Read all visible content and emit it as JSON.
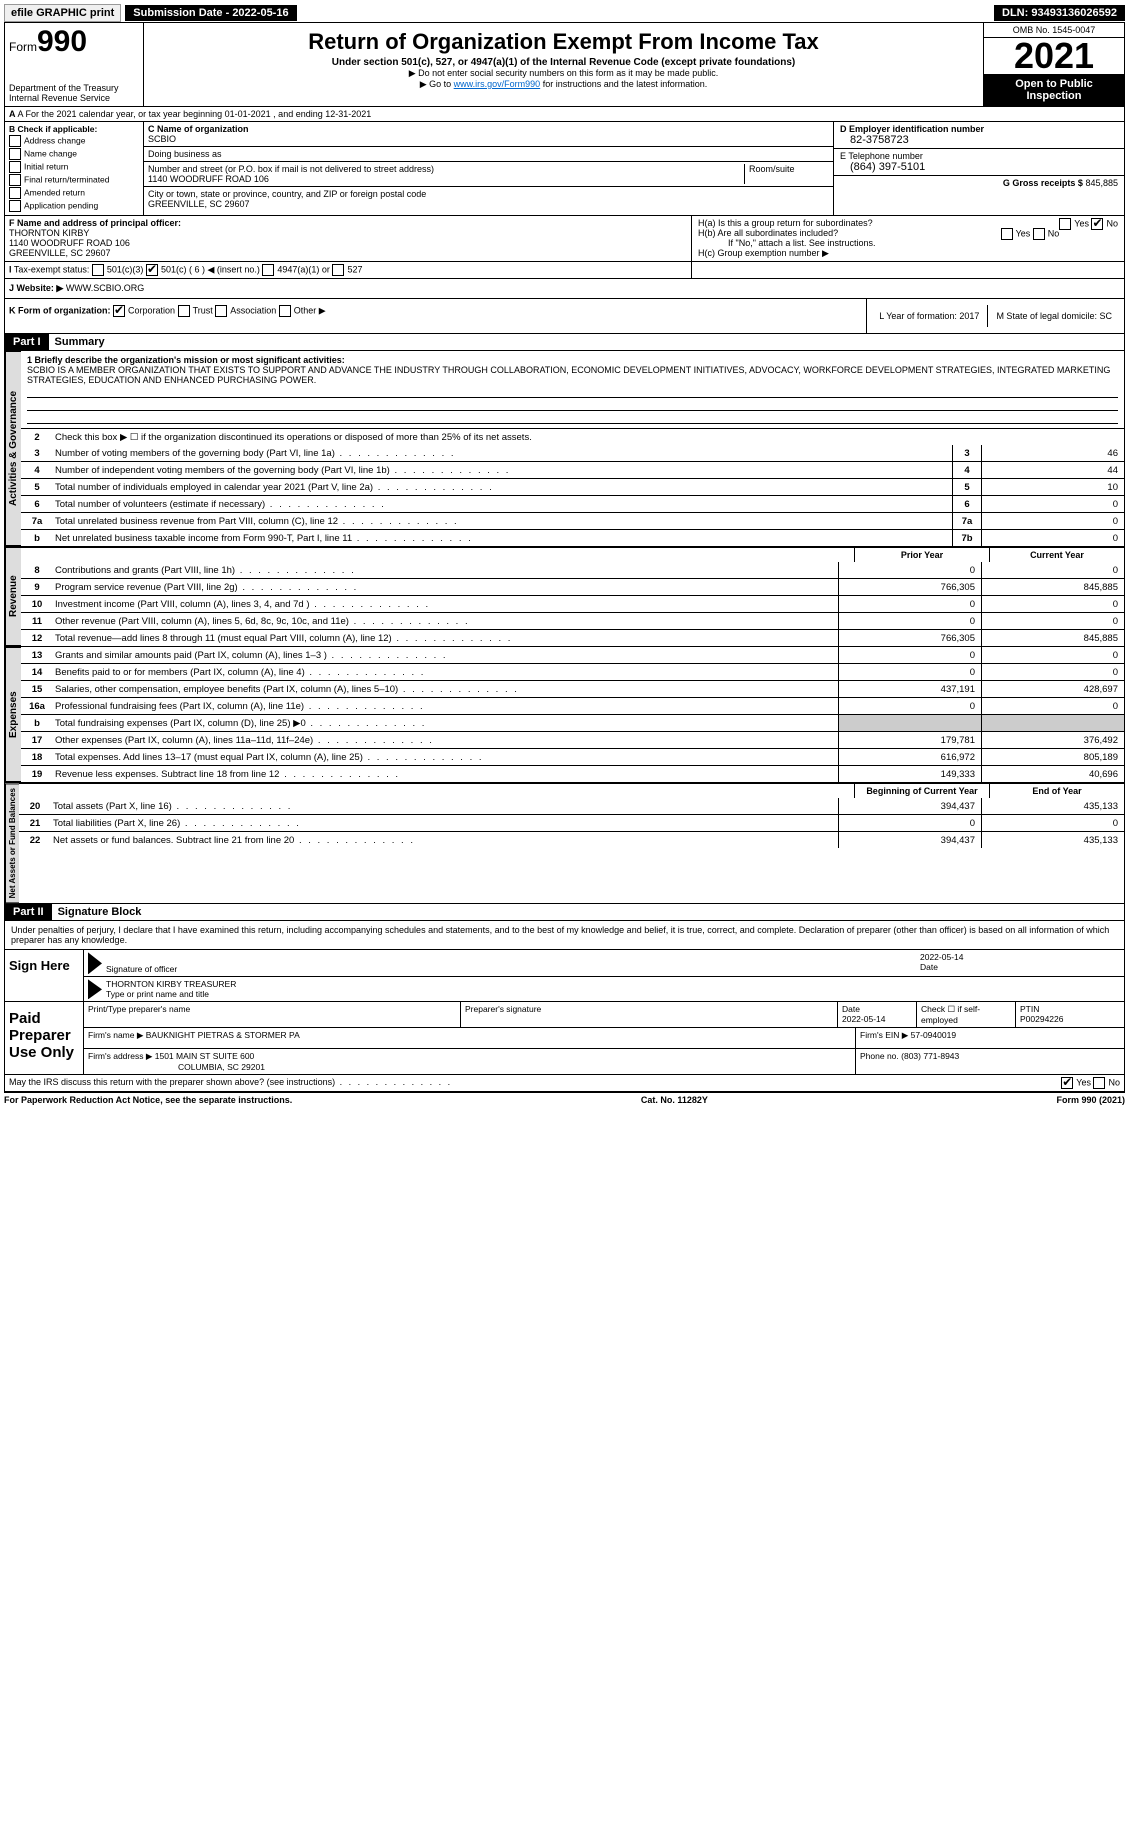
{
  "top": {
    "efile": "efile GRAPHIC print",
    "sub_label": "Submission Date - 2022-05-16",
    "dln": "DLN: 93493136026592"
  },
  "header": {
    "form_prefix": "Form",
    "form_num": "990",
    "dept": "Department of the Treasury",
    "irs": "Internal Revenue Service",
    "title": "Return of Organization Exempt From Income Tax",
    "sub": "Under section 501(c), 527, or 4947(a)(1) of the Internal Revenue Code (except private foundations)",
    "note1": "▶ Do not enter social security numbers on this form as it may be made public.",
    "note2_pre": "▶ Go to ",
    "note2_link": "www.irs.gov/Form990",
    "note2_post": " for instructions and the latest information.",
    "omb": "OMB No. 1545-0047",
    "year": "2021",
    "open": "Open to Public Inspection"
  },
  "rowA": {
    "text": "A For the 2021 calendar year, or tax year beginning 01-01-2021    , and ending 12-31-2021"
  },
  "B": {
    "label": "B Check if applicable:",
    "items": [
      "Address change",
      "Name change",
      "Initial return",
      "Final return/terminated",
      "Amended return",
      "Application pending"
    ]
  },
  "C": {
    "name_label": "C Name of organization",
    "name": "SCBIO",
    "dba_label": "Doing business as",
    "addr_label": "Number and street (or P.O. box if mail is not delivered to street address)",
    "room_label": "Room/suite",
    "addr": "1140 WOODRUFF ROAD 106",
    "city_label": "City or town, state or province, country, and ZIP or foreign postal code",
    "city": "GREENVILLE, SC  29607"
  },
  "D": {
    "label": "D Employer identification number",
    "val": "82-3758723"
  },
  "E": {
    "label": "E Telephone number",
    "val": "(864) 397-5101"
  },
  "G": {
    "label": "G Gross receipts $",
    "val": "845,885"
  },
  "F": {
    "label": "F Name and address of principal officer:",
    "name": "THORNTON KIRBY",
    "addr1": "1140 WOODRUFF ROAD 106",
    "addr2": "GREENVILLE, SC  29607"
  },
  "H": {
    "a": "H(a)  Is this a group return for subordinates?",
    "b": "H(b)  Are all subordinates included?",
    "note": "If \"No,\" attach a list. See instructions.",
    "c": "H(c)  Group exemption number ▶"
  },
  "I": {
    "label": "Tax-exempt status:",
    "opts": [
      "501(c)(3)",
      "501(c) ( 6 ) ◀ (insert no.)",
      "4947(a)(1) or",
      "527"
    ]
  },
  "J": {
    "label": "Website: ▶",
    "val": "WWW.SCBIO.ORG"
  },
  "K": {
    "label": "K Form of organization:",
    "opts": [
      "Corporation",
      "Trust",
      "Association",
      "Other ▶"
    ],
    "L": "L Year of formation: 2017",
    "M": "M State of legal domicile: SC"
  },
  "partI": {
    "hdr": "Part I",
    "title": "Summary",
    "q1": "1 Briefly describe the organization's mission or most significant activities:",
    "mission": "SCBIO IS A MEMBER ORGANIZATION THAT EXISTS TO SUPPORT AND ADVANCE THE INDUSTRY THROUGH COLLABORATION, ECONOMIC DEVELOPMENT INITIATIVES, ADVOCACY, WORKFORCE DEVELOPMENT STRATEGIES, INTEGRATED MARKETING STRATEGIES, EDUCATION AND ENHANCED PURCHASING POWER.",
    "q2": "Check this box ▶ ☐ if the organization discontinued its operations or disposed of more than 25% of its net assets.",
    "lines_single": [
      {
        "n": "3",
        "d": "Number of voting members of the governing body (Part VI, line 1a)",
        "box": "3",
        "v": "46"
      },
      {
        "n": "4",
        "d": "Number of independent voting members of the governing body (Part VI, line 1b)",
        "box": "4",
        "v": "44"
      },
      {
        "n": "5",
        "d": "Total number of individuals employed in calendar year 2021 (Part V, line 2a)",
        "box": "5",
        "v": "10"
      },
      {
        "n": "6",
        "d": "Total number of volunteers (estimate if necessary)",
        "box": "6",
        "v": "0"
      },
      {
        "n": "7a",
        "d": "Total unrelated business revenue from Part VIII, column (C), line 12",
        "box": "7a",
        "v": "0"
      },
      {
        "n": "b",
        "d": "Net unrelated business taxable income from Form 990-T, Part I, line 11",
        "box": "7b",
        "v": "0"
      }
    ],
    "col_prior": "Prior Year",
    "col_current": "Current Year",
    "revenue": [
      {
        "n": "8",
        "d": "Contributions and grants (Part VIII, line 1h)",
        "p": "0",
        "c": "0"
      },
      {
        "n": "9",
        "d": "Program service revenue (Part VIII, line 2g)",
        "p": "766,305",
        "c": "845,885"
      },
      {
        "n": "10",
        "d": "Investment income (Part VIII, column (A), lines 3, 4, and 7d )",
        "p": "0",
        "c": "0"
      },
      {
        "n": "11",
        "d": "Other revenue (Part VIII, column (A), lines 5, 6d, 8c, 9c, 10c, and 11e)",
        "p": "0",
        "c": "0"
      },
      {
        "n": "12",
        "d": "Total revenue—add lines 8 through 11 (must equal Part VIII, column (A), line 12)",
        "p": "766,305",
        "c": "845,885"
      }
    ],
    "expenses": [
      {
        "n": "13",
        "d": "Grants and similar amounts paid (Part IX, column (A), lines 1–3 )",
        "p": "0",
        "c": "0"
      },
      {
        "n": "14",
        "d": "Benefits paid to or for members (Part IX, column (A), line 4)",
        "p": "0",
        "c": "0"
      },
      {
        "n": "15",
        "d": "Salaries, other compensation, employee benefits (Part IX, column (A), lines 5–10)",
        "p": "437,191",
        "c": "428,697"
      },
      {
        "n": "16a",
        "d": "Professional fundraising fees (Part IX, column (A), line 11e)",
        "p": "0",
        "c": "0"
      },
      {
        "n": "b",
        "d": "Total fundraising expenses (Part IX, column (D), line 25) ▶0",
        "p": "",
        "c": "",
        "shaded": true
      },
      {
        "n": "17",
        "d": "Other expenses (Part IX, column (A), lines 11a–11d, 11f–24e)",
        "p": "179,781",
        "c": "376,492"
      },
      {
        "n": "18",
        "d": "Total expenses. Add lines 13–17 (must equal Part IX, column (A), line 25)",
        "p": "616,972",
        "c": "805,189"
      },
      {
        "n": "19",
        "d": "Revenue less expenses. Subtract line 18 from line 12",
        "p": "149,333",
        "c": "40,696"
      }
    ],
    "col_begin": "Beginning of Current Year",
    "col_end": "End of Year",
    "netassets": [
      {
        "n": "20",
        "d": "Total assets (Part X, line 16)",
        "p": "394,437",
        "c": "435,133"
      },
      {
        "n": "21",
        "d": "Total liabilities (Part X, line 26)",
        "p": "0",
        "c": "0"
      },
      {
        "n": "22",
        "d": "Net assets or fund balances. Subtract line 21 from line 20",
        "p": "394,437",
        "c": "435,133"
      }
    ]
  },
  "partII": {
    "hdr": "Part II",
    "title": "Signature Block",
    "decl": "Under penalties of perjury, I declare that I have examined this return, including accompanying schedules and statements, and to the best of my knowledge and belief, it is true, correct, and complete. Declaration of preparer (other than officer) is based on all information of which preparer has any knowledge."
  },
  "sign": {
    "here": "Sign Here",
    "sig_label": "Signature of officer",
    "date_label": "Date",
    "date": "2022-05-14",
    "name": "THORNTON KIRBY TREASURER",
    "name_label": "Type or print name and title"
  },
  "prep": {
    "label": "Paid Preparer Use Only",
    "r1": {
      "a": "Print/Type preparer's name",
      "b": "Preparer's signature",
      "c": "Date",
      "cv": "2022-05-14",
      "d": "Check ☐ if self-employed",
      "e": "PTIN",
      "ev": "P00294226"
    },
    "r2": {
      "a": "Firm's name    ▶",
      "av": "BAUKNIGHT PIETRAS & STORMER PA",
      "b": "Firm's EIN ▶",
      "bv": "57-0940019"
    },
    "r3": {
      "a": "Firm's address ▶",
      "av1": "1501 MAIN ST SUITE 600",
      "av2": "COLUMBIA, SC  29201",
      "b": "Phone no.",
      "bv": "(803) 771-8943"
    }
  },
  "discuss": "May the IRS discuss this return with the preparer shown above? (see instructions)",
  "footer": {
    "a": "For Paperwork Reduction Act Notice, see the separate instructions.",
    "b": "Cat. No. 11282Y",
    "c": "Form 990 (2021)"
  },
  "vtabs": {
    "gov": "Activities & Governance",
    "rev": "Revenue",
    "exp": "Expenses",
    "net": "Net Assets or Fund Balances"
  }
}
